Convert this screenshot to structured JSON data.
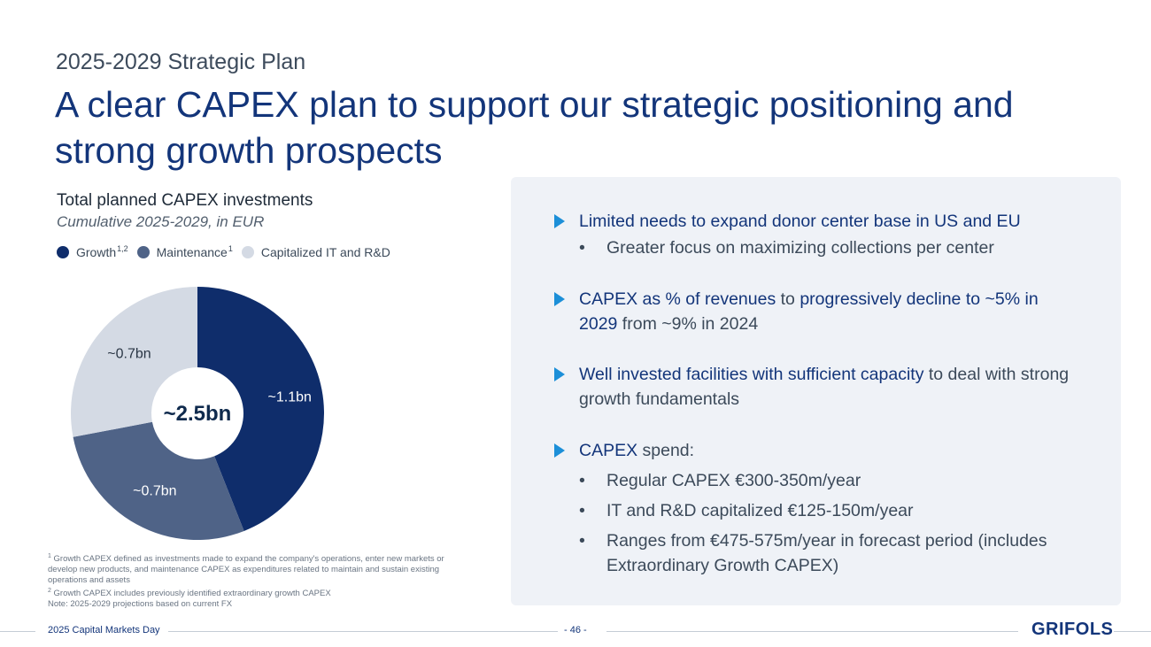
{
  "header": {
    "subtitle": "2025-2029 Strategic Plan",
    "title": "A clear CAPEX plan to support our strategic positioning and strong growth prospects"
  },
  "chart_block": {
    "title": "Total planned CAPEX investments",
    "subtitle": "Cumulative 2025-2029, in EUR",
    "legend": [
      {
        "label": "Growth",
        "sup": "1,2",
        "color": "#0f2d6b"
      },
      {
        "label": "Maintenance",
        "sup": "1",
        "color": "#4f6387"
      },
      {
        "label": "Capitalized IT and R&D",
        "sup": "",
        "color": "#d4dae4"
      }
    ],
    "center_label": "~2.5bn"
  },
  "chart_data": {
    "type": "pie",
    "donut": true,
    "center_text": "~2.5bn",
    "slices": [
      {
        "name": "Growth",
        "value": 1.1,
        "label": "~1.1bn",
        "color": "#0f2d6b",
        "label_color": "#ffffff"
      },
      {
        "name": "Maintenance",
        "value": 0.7,
        "label": "~0.7bn",
        "color": "#4f6387",
        "label_color": "#ffffff"
      },
      {
        "name": "Capitalized IT and R&D",
        "value": 0.7,
        "label": "~0.7bn",
        "color": "#d4dae4",
        "label_color": "#2a3645"
      }
    ]
  },
  "footnotes": {
    "note1_sup": "1",
    "note1": "Growth CAPEX defined as investments made to expand the company's operations, enter new markets or develop new products, and maintenance CAPEX as expenditures related to maintain and sustain existing operations and assets",
    "note2_sup": "2",
    "note2": "Growth CAPEX includes previously identified extraordinary growth CAPEX",
    "note3": "Note: 2025-2029 projections based on current FX"
  },
  "panel": {
    "b1": {
      "hl": "Limited needs to expand donor center base in US and EU",
      "sub1": "Greater focus on maximizing collections per center"
    },
    "b2": {
      "hl1": "CAPEX as % of revenues",
      "t1": " to ",
      "hl2": "progressively decline to ~5% in 2029",
      "t2": " from ~9% in 2024"
    },
    "b3": {
      "hl": "Well invested facilities with sufficient capacity",
      "t": " to deal with strong growth fundamentals"
    },
    "b4": {
      "hl": "CAPEX",
      "t": " spend:",
      "sub1": "Regular CAPEX €300-350m/year",
      "sub2": "IT and R&D capitalized €125-150m/year",
      "sub3": "Ranges from €475-575m/year in forecast period (includes Extraordinary Growth CAPEX)"
    },
    "bullet_char": "•",
    "accent": "#1c8fd8"
  },
  "footer": {
    "left": "2025 Capital Markets Day",
    "page": "- 46 -",
    "logo": "GRIFOLS"
  }
}
